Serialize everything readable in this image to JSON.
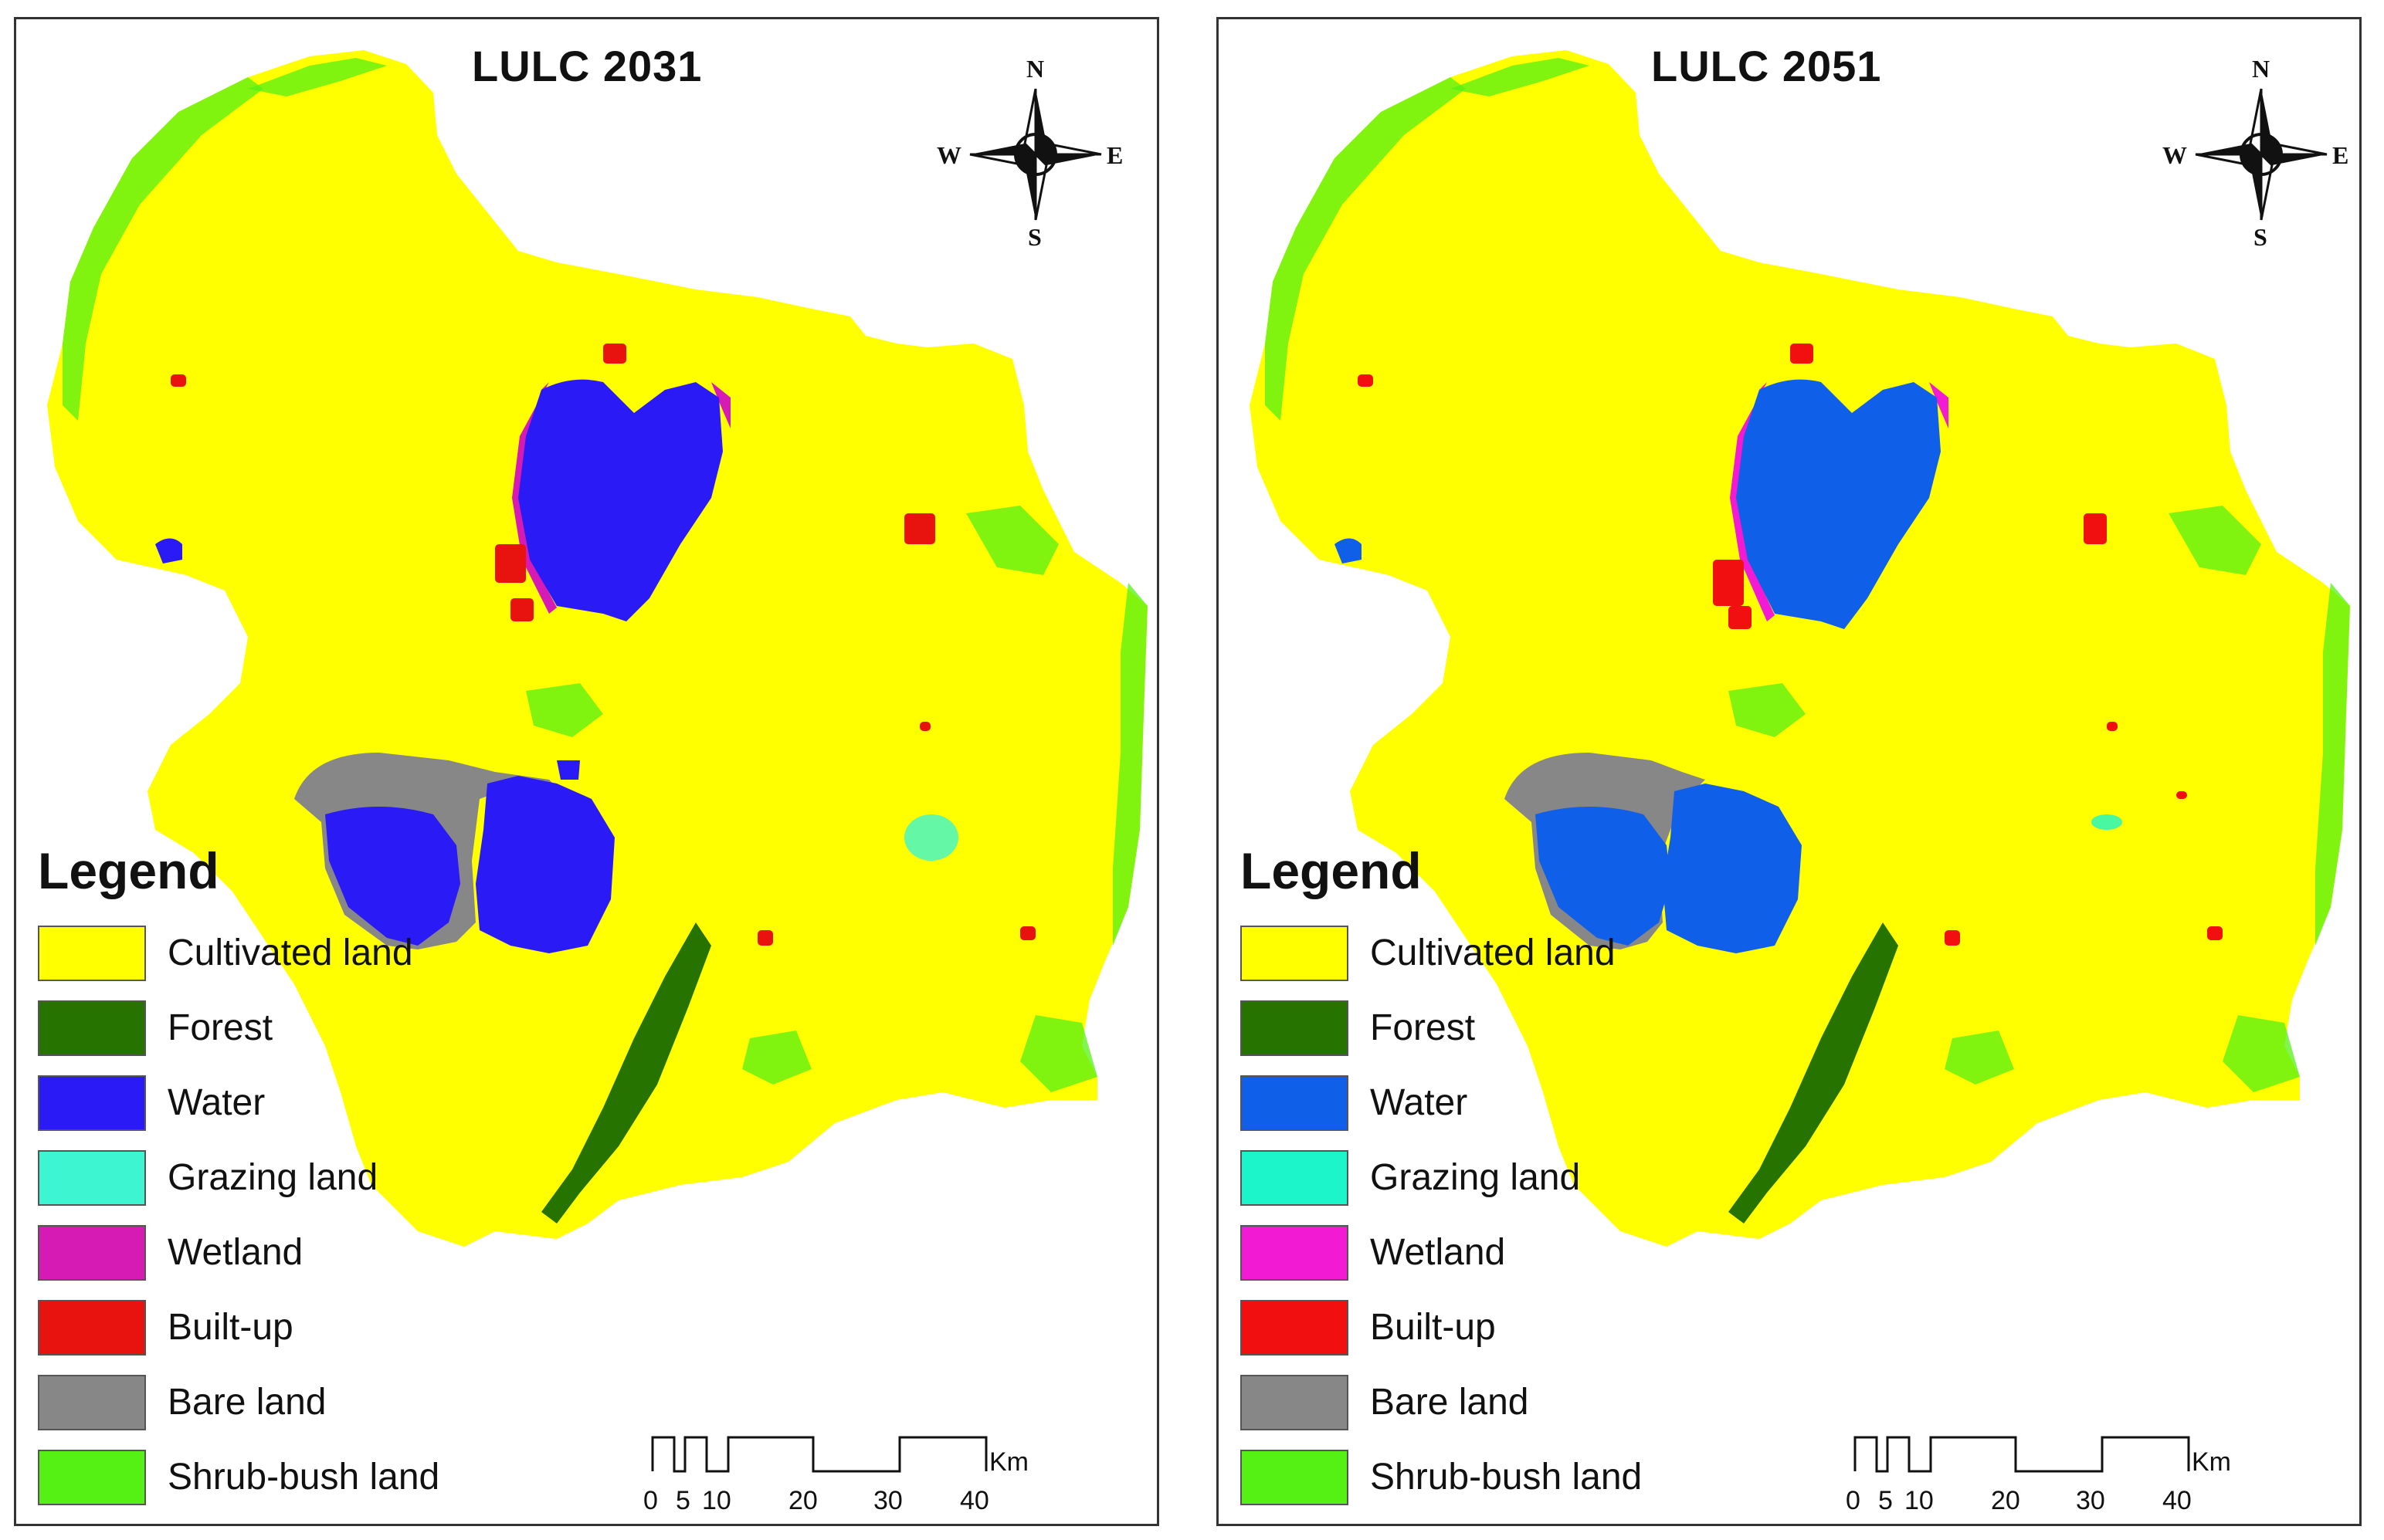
{
  "panels": [
    {
      "title": "LULC 2031",
      "colors": {
        "cultivated": "#FFFF00",
        "forest": "#267300",
        "water": "#2A1AF5",
        "grazing": "#3DF5D0",
        "wetland": "#D61AB4",
        "builtup": "#E8120E",
        "bare": "#878787",
        "shrub": "#55F014"
      }
    },
    {
      "title": "LULC 2051",
      "colors": {
        "cultivated": "#FFFF00",
        "forest": "#267300",
        "water": "#0F5FE8",
        "grazing": "#1CF5C9",
        "wetland": "#F21AD2",
        "builtup": "#F20F0F",
        "bare": "#878787",
        "shrub": "#55F014"
      }
    }
  ],
  "legend": {
    "title": "Legend",
    "items": [
      {
        "key": "cultivated",
        "label": "Cultivated land"
      },
      {
        "key": "forest",
        "label": "Forest"
      },
      {
        "key": "water",
        "label": "Water"
      },
      {
        "key": "grazing",
        "label": "Grazing land"
      },
      {
        "key": "wetland",
        "label": "Wetland"
      },
      {
        "key": "builtup",
        "label": "Built-up"
      },
      {
        "key": "bare",
        "label": "Bare land"
      },
      {
        "key": "shrub",
        "label": "Shrub-bush land"
      }
    ]
  },
  "compass": {
    "n": "N",
    "s": "S",
    "e": "E",
    "w": "W"
  },
  "scale": {
    "unit": "Km",
    "ticks": [
      "0",
      "5",
      "10",
      "20",
      "30",
      "40"
    ]
  }
}
